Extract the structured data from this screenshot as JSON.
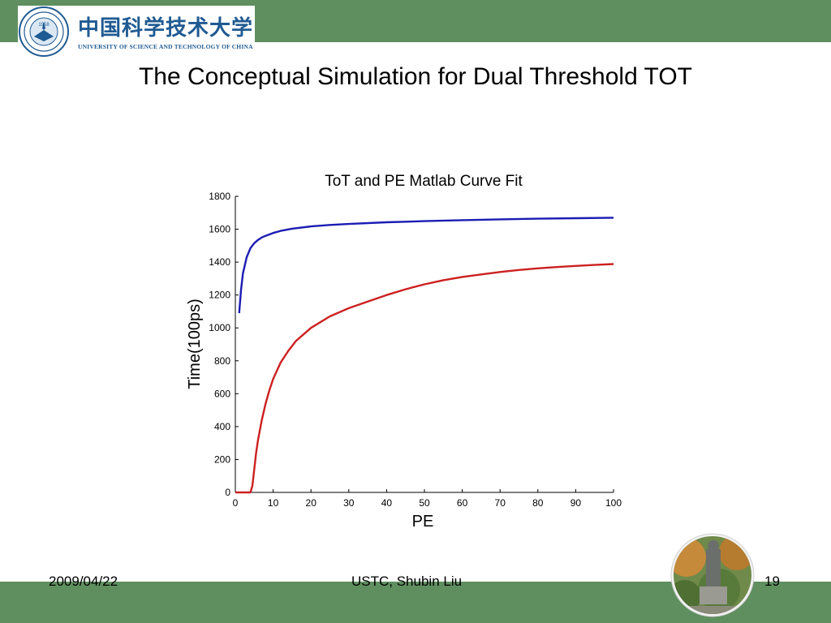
{
  "header": {
    "logo": {
      "chinese_name": "中国科学技术大学",
      "english_name": "UNIVERSITY OF SCIENCE AND TECHNOLOGY OF CHINA",
      "seal_year": "1958"
    },
    "title": "The Conceptual Simulation for Dual Threshold TOT"
  },
  "footer": {
    "date": "2009/04/22",
    "author": "USTC, Shubin Liu",
    "page_number": "19"
  },
  "colors": {
    "band": "#5f8f5f",
    "series_blue": "#1c1cb4",
    "series_red": "#cc2020",
    "logo_blue": "#1f5a92"
  },
  "chart_data": {
    "type": "line",
    "title": "ToT and PE Matlab Curve Fit",
    "xlabel": "PE",
    "ylabel": "Time(100ps)",
    "xlim": [
      0,
      100
    ],
    "ylim": [
      0,
      1800
    ],
    "xticks": [
      "0",
      "10",
      "20",
      "30",
      "40",
      "50",
      "60",
      "70",
      "80",
      "90",
      "100"
    ],
    "yticks": [
      "0",
      "200",
      "400",
      "600",
      "800",
      "1000",
      "1200",
      "1400",
      "1600",
      "1800"
    ],
    "grid": false,
    "series": [
      {
        "color": "#1c1cb4",
        "x": [
          1,
          1.5,
          2,
          3,
          4,
          5,
          6,
          7,
          8,
          10,
          12,
          15,
          20,
          25,
          30,
          40,
          50,
          60,
          70,
          80,
          90,
          100
        ],
        "y": [
          1090,
          1230,
          1330,
          1430,
          1485,
          1515,
          1535,
          1550,
          1560,
          1577,
          1590,
          1603,
          1617,
          1626,
          1632,
          1642,
          1649,
          1655,
          1660,
          1664,
          1667,
          1670
        ]
      },
      {
        "color": "#cc2020",
        "x": [
          0,
          2,
          4,
          4.5,
          5,
          5.5,
          6,
          7,
          8,
          9,
          10,
          12,
          14,
          16,
          18,
          20,
          25,
          30,
          35,
          40,
          45,
          50,
          55,
          60,
          65,
          70,
          75,
          80,
          85,
          90,
          95,
          100
        ],
        "y": [
          0,
          0,
          0,
          40,
          140,
          240,
          320,
          440,
          540,
          620,
          690,
          790,
          860,
          920,
          960,
          1000,
          1070,
          1120,
          1160,
          1200,
          1235,
          1265,
          1290,
          1310,
          1325,
          1340,
          1352,
          1362,
          1370,
          1377,
          1383,
          1388
        ]
      }
    ]
  }
}
